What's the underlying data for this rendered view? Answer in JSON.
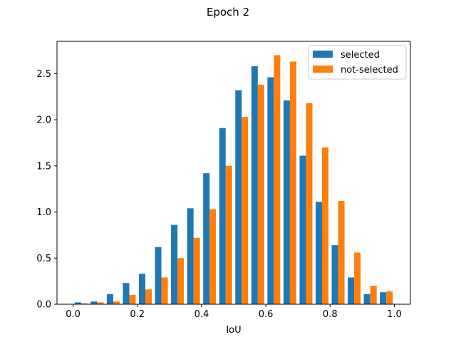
{
  "chart_data": {
    "type": "bar",
    "title": "Epoch 2",
    "xlabel": "IoU",
    "ylabel": "",
    "xlim": [
      -0.05,
      1.05
    ],
    "ylim": [
      0.0,
      2.85
    ],
    "grid": false,
    "legend_position": "upper right",
    "bin_edges": [
      0.0,
      0.05,
      0.1,
      0.15,
      0.2,
      0.25,
      0.3,
      0.35,
      0.4,
      0.45,
      0.5,
      0.55,
      0.6,
      0.65,
      0.7,
      0.75,
      0.8,
      0.85,
      0.9,
      0.95,
      1.0
    ],
    "x_ticks": [
      "0.0",
      "0.2",
      "0.4",
      "0.6",
      "0.8",
      "1.0"
    ],
    "x_tick_values": [
      0.0,
      0.2,
      0.4,
      0.6,
      0.8,
      1.0
    ],
    "y_ticks": [
      "0.0",
      "0.5",
      "1.0",
      "1.5",
      "2.0",
      "2.5"
    ],
    "y_tick_values": [
      0.0,
      0.5,
      1.0,
      1.5,
      2.0,
      2.5
    ],
    "series": [
      {
        "name": "selected",
        "color": "#1f77b4",
        "values": [
          0.02,
          0.03,
          0.11,
          0.23,
          0.33,
          0.62,
          0.86,
          1.04,
          1.42,
          1.91,
          2.32,
          2.58,
          2.46,
          2.21,
          1.61,
          1.11,
          0.64,
          0.29,
          0.11,
          0.13
        ]
      },
      {
        "name": "not-selected",
        "color": "#ff7f0e",
        "values": [
          0.01,
          0.02,
          0.03,
          0.1,
          0.16,
          0.29,
          0.5,
          0.72,
          1.03,
          1.5,
          2.03,
          2.38,
          2.7,
          2.63,
          2.18,
          1.7,
          1.12,
          0.56,
          0.2,
          0.14
        ]
      }
    ]
  }
}
